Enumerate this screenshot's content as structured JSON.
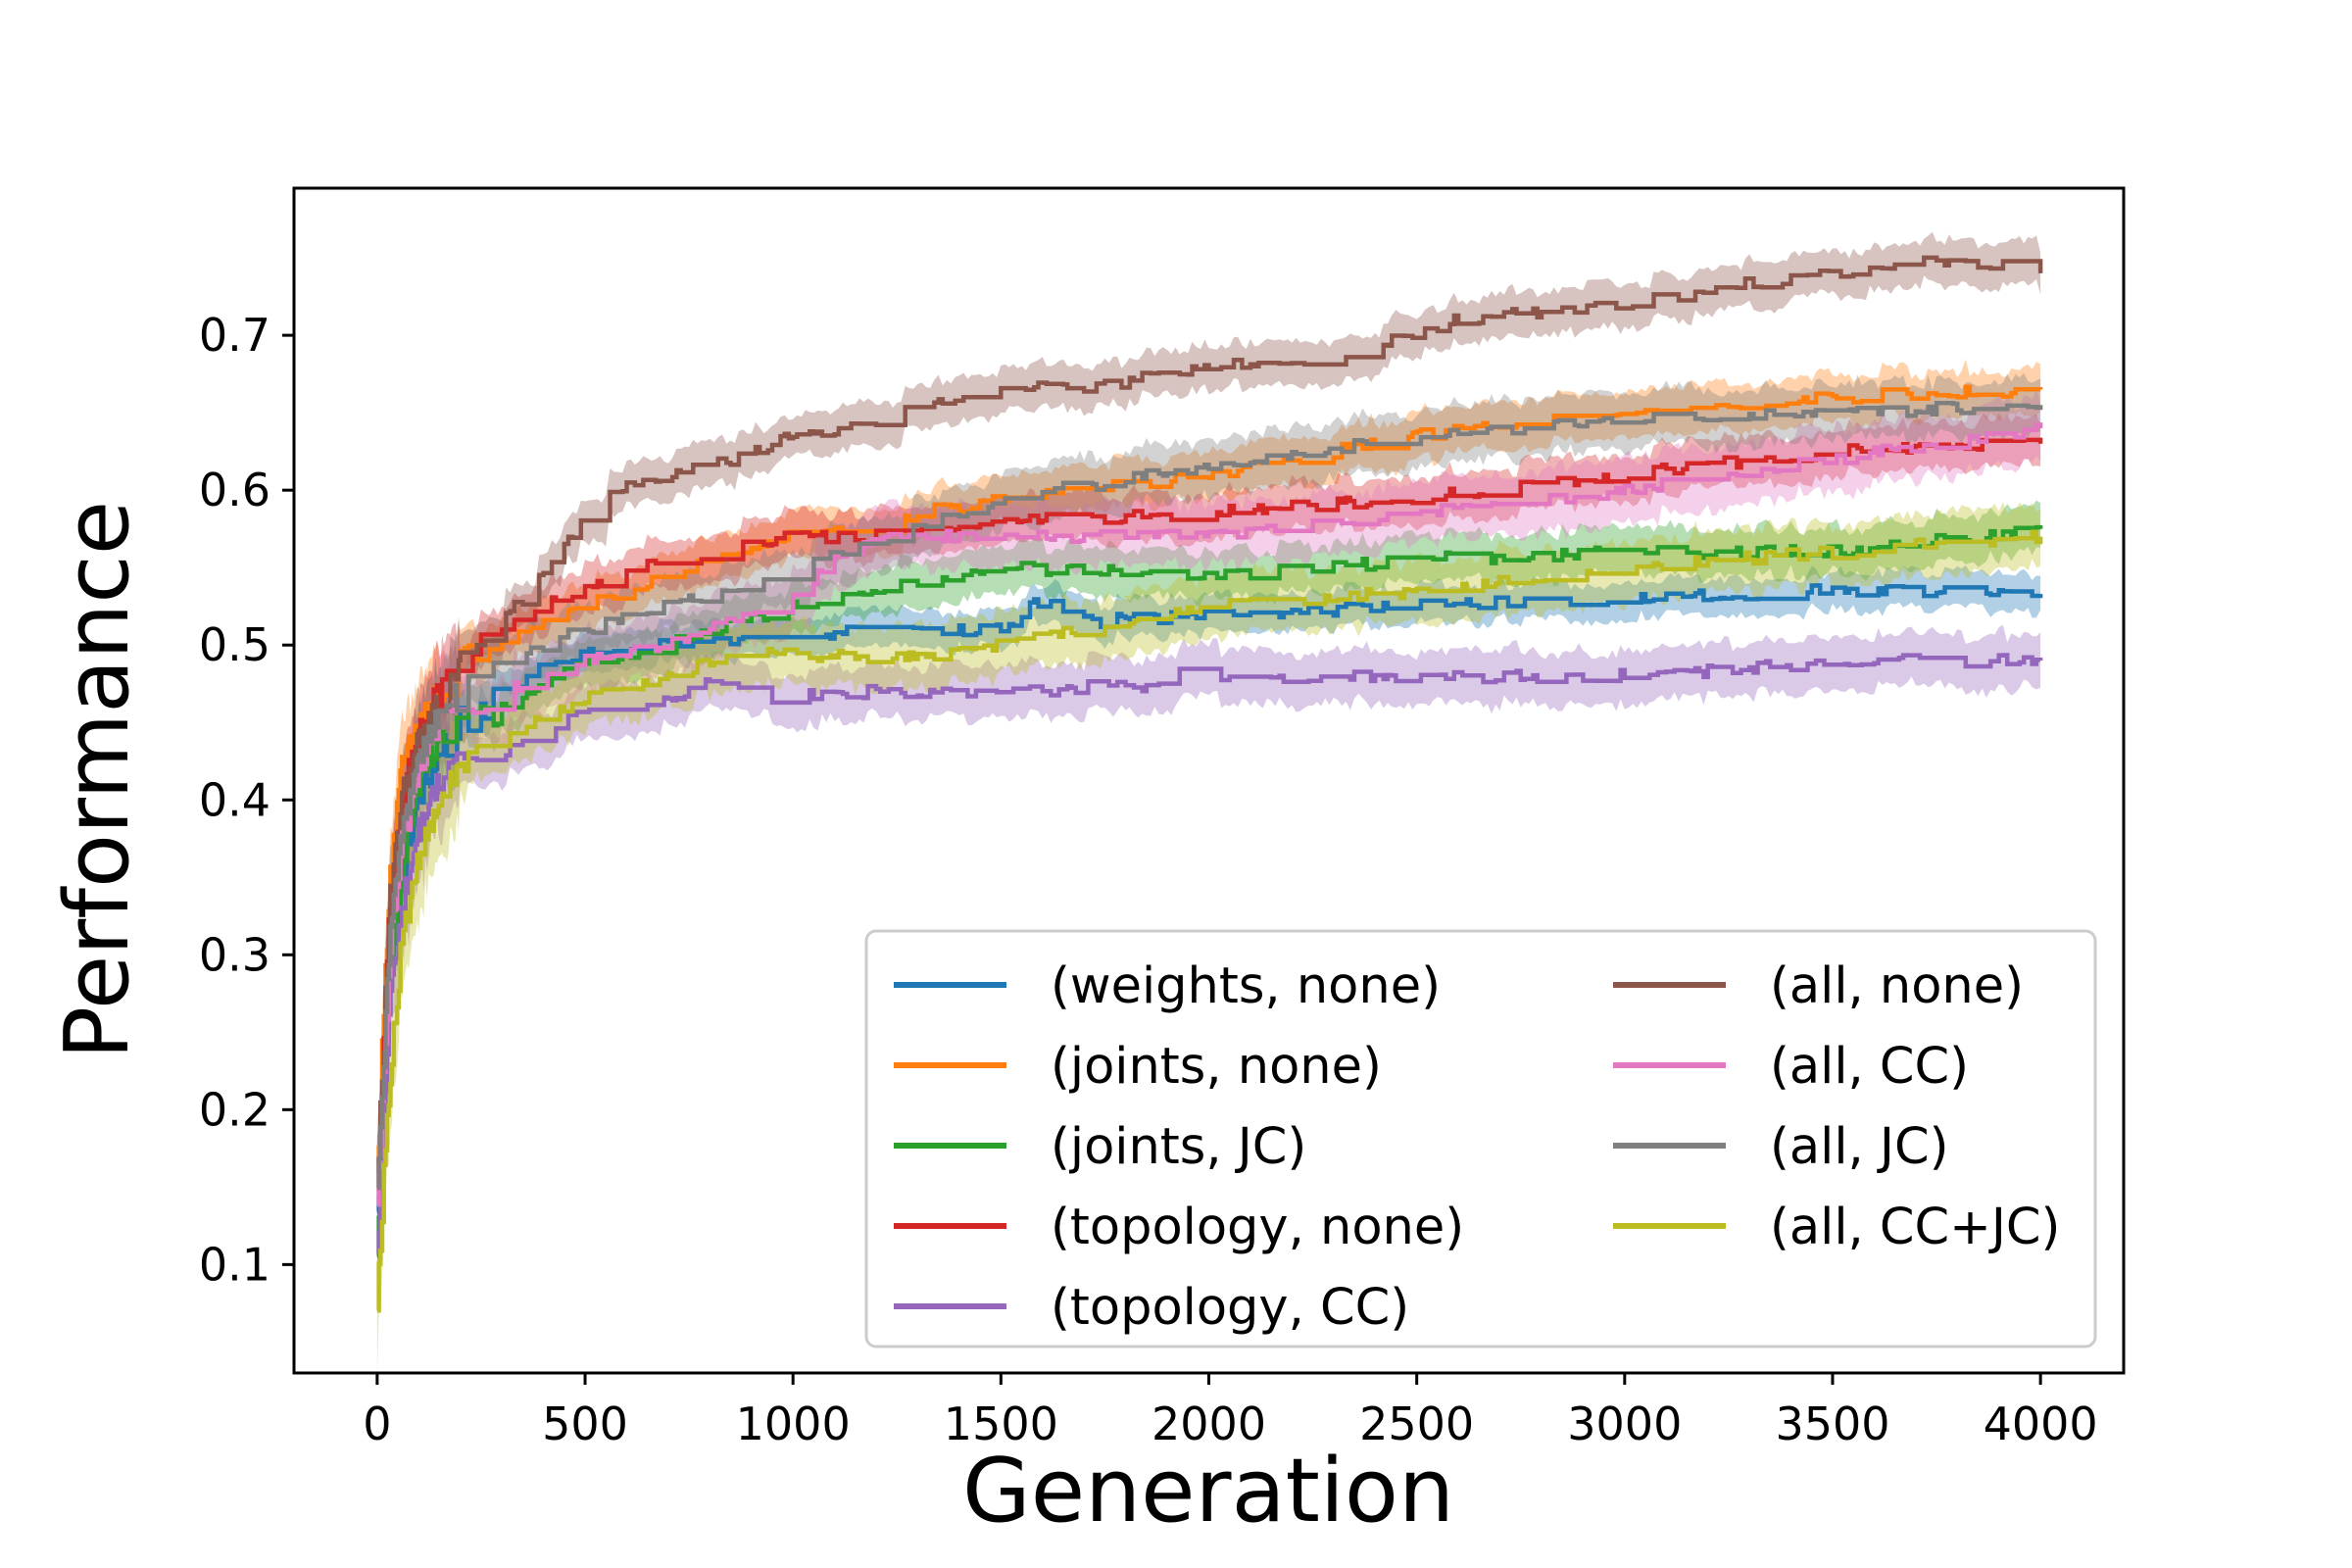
{
  "chart_data": {
    "type": "line",
    "title": "",
    "xlabel": "Generation",
    "ylabel": "Performance",
    "xlim": [
      -200,
      4200
    ],
    "ylim": [
      0.03,
      0.795
    ],
    "xticks": [
      0,
      500,
      1000,
      1500,
      2000,
      2500,
      3000,
      3500,
      4000
    ],
    "xtick_labels": [
      "0",
      "500",
      "1000",
      "1500",
      "2000",
      "2500",
      "3000",
      "3500",
      "4000"
    ],
    "yticks": [
      0.1,
      0.2,
      0.3,
      0.4,
      0.5,
      0.6,
      0.7
    ],
    "ytick_labels": [
      "0.1",
      "0.2",
      "0.3",
      "0.4",
      "0.5",
      "0.6",
      "0.7"
    ],
    "grid": false,
    "legend": {
      "placement": "lower-right",
      "columns": 2
    },
    "band": "shaded ± spread around each series",
    "series": [
      {
        "name": "(weights, none)",
        "color": "#1f77b4",
        "band": 0.012,
        "points": [
          [
            0,
            0.13
          ],
          [
            30,
            0.28
          ],
          [
            60,
            0.35
          ],
          [
            100,
            0.4
          ],
          [
            150,
            0.43
          ],
          [
            200,
            0.45
          ],
          [
            300,
            0.47
          ],
          [
            400,
            0.485
          ],
          [
            500,
            0.495
          ],
          [
            700,
            0.5
          ],
          [
            1000,
            0.505
          ],
          [
            1200,
            0.51
          ],
          [
            1400,
            0.51
          ],
          [
            1500,
            0.51
          ],
          [
            1600,
            0.53
          ],
          [
            1700,
            0.515
          ],
          [
            2000,
            0.52
          ],
          [
            2500,
            0.525
          ],
          [
            3000,
            0.53
          ],
          [
            3500,
            0.535
          ],
          [
            4000,
            0.533
          ]
        ]
      },
      {
        "name": "(joints, none)",
        "color": "#ff7f0e",
        "band": 0.015,
        "points": [
          [
            0,
            0.16
          ],
          [
            30,
            0.35
          ],
          [
            60,
            0.42
          ],
          [
            100,
            0.45
          ],
          [
            150,
            0.47
          ],
          [
            200,
            0.49
          ],
          [
            300,
            0.5
          ],
          [
            400,
            0.515
          ],
          [
            500,
            0.525
          ],
          [
            700,
            0.545
          ],
          [
            1000,
            0.57
          ],
          [
            1300,
            0.585
          ],
          [
            1500,
            0.595
          ],
          [
            2000,
            0.61
          ],
          [
            2500,
            0.635
          ],
          [
            3000,
            0.65
          ],
          [
            3500,
            0.66
          ],
          [
            4000,
            0.665
          ]
        ]
      },
      {
        "name": "(joints, JC)",
        "color": "#2ca02c",
        "band": 0.015,
        "points": [
          [
            0,
            0.1
          ],
          [
            30,
            0.28
          ],
          [
            60,
            0.36
          ],
          [
            100,
            0.41
          ],
          [
            150,
            0.435
          ],
          [
            200,
            0.45
          ],
          [
            300,
            0.46
          ],
          [
            400,
            0.475
          ],
          [
            500,
            0.49
          ],
          [
            700,
            0.5
          ],
          [
            1000,
            0.525
          ],
          [
            1200,
            0.535
          ],
          [
            1500,
            0.55
          ],
          [
            2000,
            0.545
          ],
          [
            2500,
            0.555
          ],
          [
            3000,
            0.56
          ],
          [
            3500,
            0.56
          ],
          [
            4000,
            0.575
          ]
        ]
      },
      {
        "name": "(topology, none)",
        "color": "#d62728",
        "band": 0.015,
        "points": [
          [
            0,
            0.14
          ],
          [
            30,
            0.33
          ],
          [
            60,
            0.4
          ],
          [
            100,
            0.44
          ],
          [
            150,
            0.47
          ],
          [
            200,
            0.49
          ],
          [
            300,
            0.51
          ],
          [
            400,
            0.525
          ],
          [
            500,
            0.535
          ],
          [
            600,
            0.55
          ],
          [
            800,
            0.56
          ],
          [
            1000,
            0.57
          ],
          [
            1200,
            0.57
          ],
          [
            1500,
            0.58
          ],
          [
            2000,
            0.585
          ],
          [
            2500,
            0.595
          ],
          [
            3000,
            0.61
          ],
          [
            3500,
            0.625
          ],
          [
            4000,
            0.63
          ]
        ]
      },
      {
        "name": "(topology, CC)",
        "color": "#9467bd",
        "band": 0.017,
        "points": [
          [
            0,
            0.1
          ],
          [
            30,
            0.27
          ],
          [
            60,
            0.33
          ],
          [
            100,
            0.38
          ],
          [
            150,
            0.41
          ],
          [
            200,
            0.425
          ],
          [
            300,
            0.43
          ],
          [
            400,
            0.445
          ],
          [
            500,
            0.455
          ],
          [
            700,
            0.465
          ],
          [
            850,
            0.48
          ],
          [
            900,
            0.465
          ],
          [
            1200,
            0.47
          ],
          [
            1500,
            0.47
          ],
          [
            1900,
            0.475
          ],
          [
            1950,
            0.485
          ],
          [
            2050,
            0.48
          ],
          [
            2500,
            0.48
          ],
          [
            3000,
            0.48
          ],
          [
            3300,
            0.485
          ],
          [
            3500,
            0.49
          ],
          [
            4000,
            0.49
          ]
        ]
      },
      {
        "name": "(all, none)",
        "color": "#8c564b",
        "band": 0.014,
        "points": [
          [
            0,
            0.15
          ],
          [
            30,
            0.33
          ],
          [
            60,
            0.4
          ],
          [
            100,
            0.44
          ],
          [
            150,
            0.465
          ],
          [
            200,
            0.49
          ],
          [
            300,
            0.515
          ],
          [
            400,
            0.545
          ],
          [
            500,
            0.585
          ],
          [
            600,
            0.605
          ],
          [
            800,
            0.615
          ],
          [
            1000,
            0.635
          ],
          [
            1200,
            0.645
          ],
          [
            1500,
            0.665
          ],
          [
            1600,
            0.67
          ],
          [
            1700,
            0.665
          ],
          [
            2000,
            0.68
          ],
          [
            2300,
            0.685
          ],
          [
            2400,
            0.695
          ],
          [
            2600,
            0.71
          ],
          [
            3000,
            0.72
          ],
          [
            3200,
            0.73
          ],
          [
            3500,
            0.74
          ],
          [
            3800,
            0.75
          ],
          [
            4000,
            0.74
          ]
        ]
      },
      {
        "name": "(all, CC)",
        "color": "#e377c2",
        "band": 0.02,
        "points": [
          [
            0,
            0.13
          ],
          [
            30,
            0.3
          ],
          [
            60,
            0.37
          ],
          [
            100,
            0.42
          ],
          [
            150,
            0.45
          ],
          [
            200,
            0.46
          ],
          [
            300,
            0.47
          ],
          [
            400,
            0.48
          ],
          [
            500,
            0.49
          ],
          [
            700,
            0.5
          ],
          [
            1000,
            0.53
          ],
          [
            1100,
            0.555
          ],
          [
            1200,
            0.57
          ],
          [
            1500,
            0.57
          ],
          [
            2000,
            0.57
          ],
          [
            2500,
            0.585
          ],
          [
            3000,
            0.6
          ],
          [
            3500,
            0.62
          ],
          [
            4000,
            0.64
          ]
        ]
      },
      {
        "name": "(all, JC)",
        "color": "#7f7f7f",
        "band": 0.018,
        "points": [
          [
            0,
            0.14
          ],
          [
            30,
            0.31
          ],
          [
            60,
            0.38
          ],
          [
            100,
            0.43
          ],
          [
            150,
            0.455
          ],
          [
            200,
            0.47
          ],
          [
            300,
            0.49
          ],
          [
            400,
            0.5
          ],
          [
            500,
            0.51
          ],
          [
            700,
            0.525
          ],
          [
            1000,
            0.55
          ],
          [
            1300,
            0.575
          ],
          [
            1500,
            0.595
          ],
          [
            2000,
            0.615
          ],
          [
            2500,
            0.635
          ],
          [
            3000,
            0.645
          ],
          [
            3500,
            0.65
          ],
          [
            4000,
            0.655
          ]
        ]
      },
      {
        "name": "(all, CC+JC)",
        "color": "#bcbd22",
        "band": 0.02,
        "points": [
          [
            0,
            0.08
          ],
          [
            30,
            0.22
          ],
          [
            60,
            0.31
          ],
          [
            100,
            0.36
          ],
          [
            150,
            0.4
          ],
          [
            200,
            0.425
          ],
          [
            300,
            0.44
          ],
          [
            400,
            0.455
          ],
          [
            500,
            0.465
          ],
          [
            700,
            0.48
          ],
          [
            900,
            0.5
          ],
          [
            1000,
            0.495
          ],
          [
            1200,
            0.49
          ],
          [
            1500,
            0.5
          ],
          [
            2000,
            0.525
          ],
          [
            2500,
            0.535
          ],
          [
            3000,
            0.55
          ],
          [
            3500,
            0.56
          ],
          [
            4000,
            0.57
          ]
        ]
      }
    ]
  }
}
